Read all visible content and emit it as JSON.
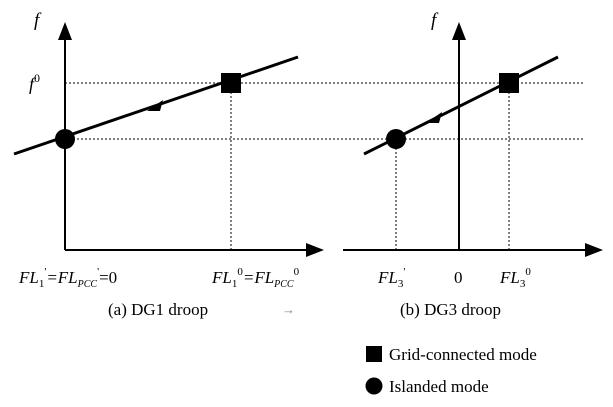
{
  "panel_a": {
    "y_label": "f",
    "f0_label": "0",
    "x_left_base": "FL",
    "x_left_sub": "1",
    "x_left_sup": "'",
    "x_left_mid": "=FL",
    "x_left_sub2": "PCC",
    "x_left_sup2": "'",
    "x_left_end": "=0",
    "x_right_base": "FL",
    "x_right_sub": "1",
    "x_right_sup": "0",
    "x_right_mid": "=FL",
    "x_right_sub2": "PCC",
    "x_right_sup2": "0",
    "caption": "(a) DG1 droop",
    "caption_arrow": "→"
  },
  "panel_b": {
    "y_label": "f",
    "x_left_base": "FL",
    "x_left_sub": "3",
    "x_left_sup": "'",
    "x_zero": "0",
    "x_right_base": "FL",
    "x_right_sub": "3",
    "x_right_sup": "0",
    "caption": "(b) DG3 droop"
  },
  "shared": {
    "f0_base": "f"
  },
  "legend": {
    "grid_connected": "Grid-connected mode",
    "islanded": "Islanded mode"
  },
  "colors": {
    "ink": "#000000",
    "background": "#ffffff"
  }
}
